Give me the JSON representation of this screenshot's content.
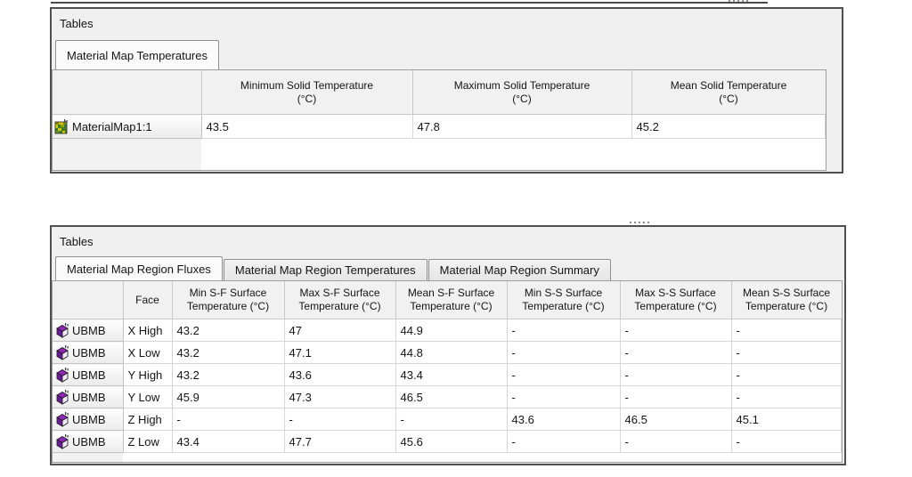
{
  "panel1": {
    "title": "Tables",
    "tabs": [
      {
        "label": "Material Map Temperatures",
        "active": true
      }
    ],
    "table": {
      "headers": [
        [
          ""
        ],
        [
          "Minimum Solid Temperature",
          "(°C)"
        ],
        [
          "Maximum Solid Temperature",
          "(°C)"
        ],
        [
          "Mean Solid Temperature",
          "(°C)"
        ]
      ],
      "rows": [
        {
          "icon": "material-map-icon",
          "name": "MaterialMap1:1",
          "values": [
            "43.5",
            "47.8",
            "45.2"
          ]
        }
      ]
    }
  },
  "panel2": {
    "title": "Tables",
    "tabs": [
      {
        "label": "Material Map Region Fluxes",
        "active": true
      },
      {
        "label": "Material Map Region Temperatures",
        "active": false
      },
      {
        "label": "Material Map Region Summary",
        "active": false
      }
    ],
    "table": {
      "headers": [
        [
          ""
        ],
        [
          "Face"
        ],
        [
          "Min S-F Surface",
          "Temperature (°C)"
        ],
        [
          "Max S-F Surface",
          "Temperature (°C)"
        ],
        [
          "Mean S-F Surface",
          "Temperature (°C)"
        ],
        [
          "Min S-S Surface",
          "Temperature (°C)"
        ],
        [
          "Max S-S Surface",
          "Temperature (°C)"
        ],
        [
          "Mean S-S Surface",
          "Temperature (°C)"
        ]
      ],
      "rows": [
        {
          "icon": "cuboid-icon",
          "name": "UBMB",
          "values": [
            "X High",
            "43.2",
            "47",
            "44.9",
            "-",
            "-",
            "-"
          ]
        },
        {
          "icon": "cuboid-icon",
          "name": "UBMB",
          "values": [
            "X Low",
            "43.2",
            "47.1",
            "44.8",
            "-",
            "-",
            "-"
          ]
        },
        {
          "icon": "cuboid-icon",
          "name": "UBMB",
          "values": [
            "Y High",
            "43.2",
            "43.6",
            "43.4",
            "-",
            "-",
            "-"
          ]
        },
        {
          "icon": "cuboid-icon",
          "name": "UBMB",
          "values": [
            "Y Low",
            "45.9",
            "47.3",
            "46.5",
            "-",
            "-",
            "-"
          ]
        },
        {
          "icon": "cuboid-icon",
          "name": "UBMB",
          "values": [
            "Z High",
            "-",
            "-",
            "-",
            "43.6",
            "46.5",
            "45.1"
          ]
        },
        {
          "icon": "cuboid-icon",
          "name": "UBMB",
          "values": [
            "Z Low",
            "43.4",
            "47.7",
            "45.6",
            "-",
            "-",
            "-"
          ]
        }
      ]
    }
  },
  "colors": {
    "panel_background": "#f0f0f0",
    "panel_border": "#4f4f4f",
    "cube_icon_purple": "#7b1fa2",
    "map_icon_green": "#2e7d32",
    "map_icon_yellow": "#d8c400"
  }
}
